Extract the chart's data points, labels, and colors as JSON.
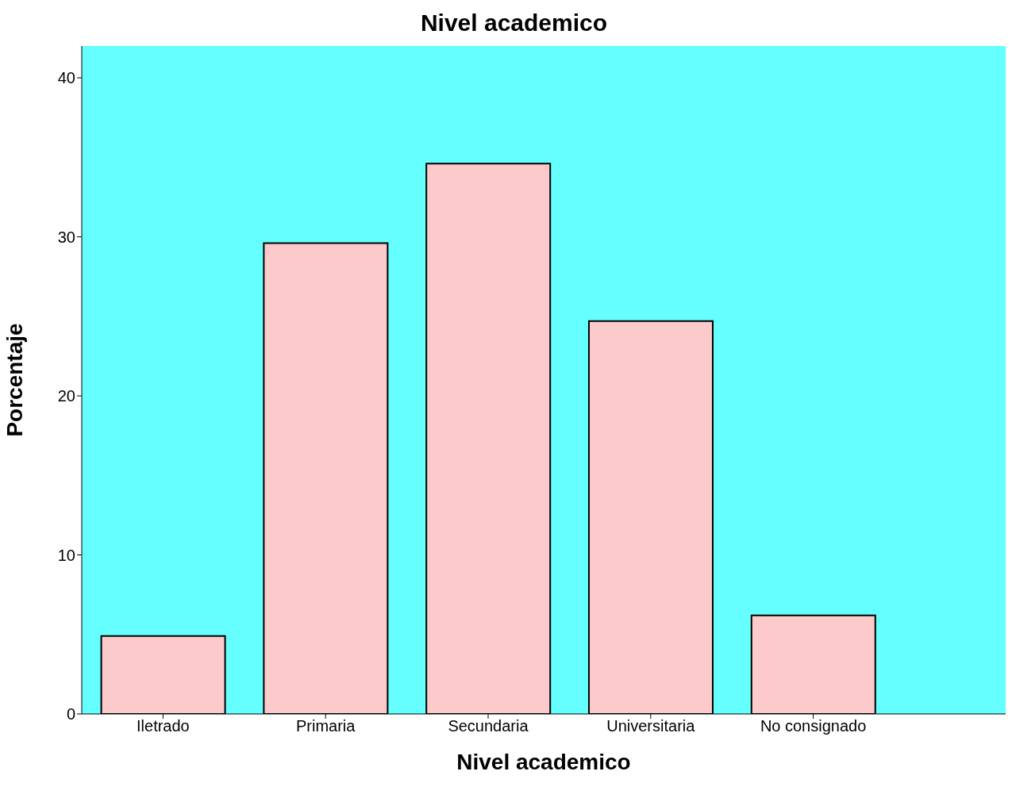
{
  "chart_data": {
    "type": "bar",
    "title": "Nivel academico",
    "xlabel": "Nivel academico",
    "ylabel": "Porcentaje",
    "categories": [
      "Iletrado",
      "Primaria",
      "Secundaria",
      "Universitaria",
      "No consignado"
    ],
    "values": [
      4.9,
      29.6,
      34.6,
      24.7,
      6.2
    ],
    "color": "#fccaca",
    "ylim": [
      0,
      42
    ],
    "yticks": [
      0,
      10,
      20,
      30,
      40
    ],
    "grid": false
  }
}
